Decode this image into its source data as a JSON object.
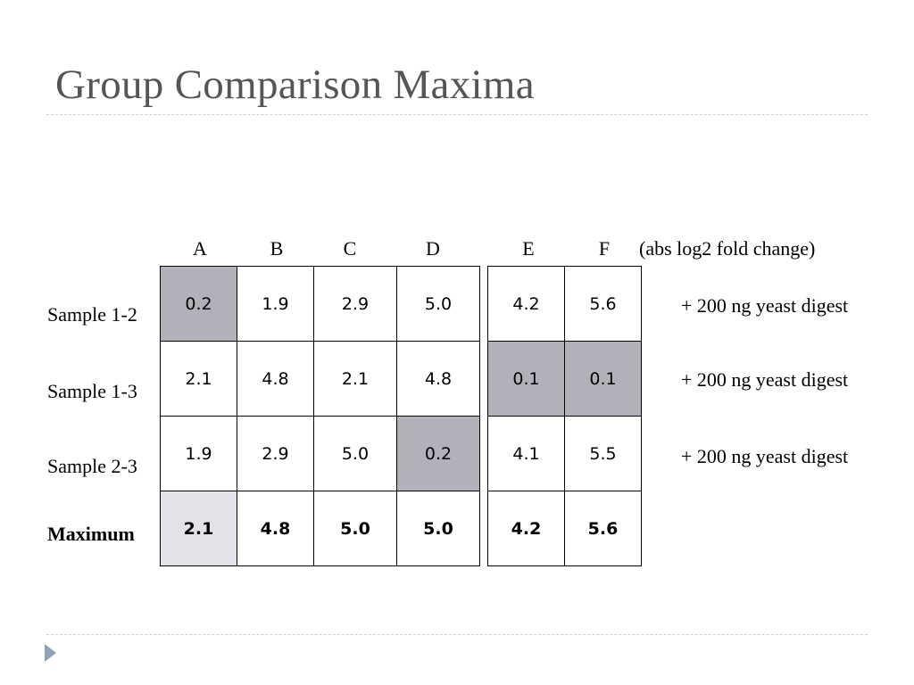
{
  "title": "Group Comparison Maxima",
  "units_label": "(abs log2 fold change)",
  "columns": [
    "A",
    "B",
    "C",
    "D",
    "E",
    "F"
  ],
  "rows": [
    {
      "label": "Sample 1-2",
      "note": "+ 200 ng yeast digest",
      "left": [
        "0.2",
        "1.9",
        "2.9",
        "5.0"
      ],
      "right": [
        "4.2",
        "5.6"
      ]
    },
    {
      "label": "Sample 1-3",
      "note": "+ 200 ng yeast digest",
      "left": [
        "2.1",
        "4.8",
        "2.1",
        "4.8"
      ],
      "right": [
        "0.1",
        "0.1"
      ]
    },
    {
      "label": "Sample 2-3",
      "note": "+ 200 ng yeast digest",
      "left": [
        "1.9",
        "2.9",
        "5.0",
        "0.2"
      ],
      "right": [
        "4.1",
        "5.5"
      ]
    },
    {
      "label": "Maximum",
      "left": [
        "2.1",
        "4.8",
        "5.0",
        "5.0"
      ],
      "right": [
        "4.2",
        "5.6"
      ]
    }
  ],
  "colors": {
    "highlight": "#b1b1b9",
    "light_highlight": "#e2e3e9",
    "title": "#555555",
    "rule": "#c9d3d9",
    "bullet": "#8ea3b7"
  },
  "icons": {
    "bullet": "triangle-bullet-icon"
  }
}
